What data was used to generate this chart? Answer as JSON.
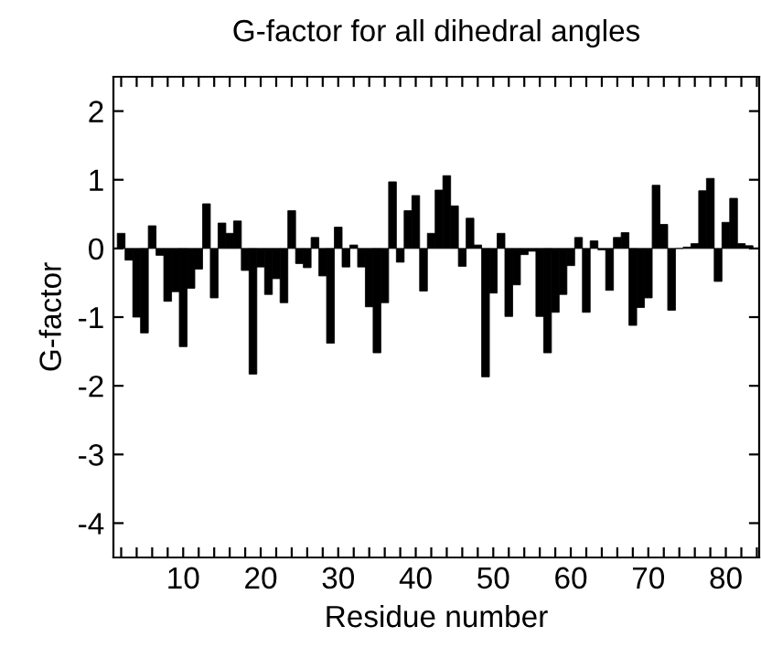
{
  "chart_data": {
    "type": "bar",
    "title": "G-factor for all dihedral angles",
    "xlabel": "Residue number",
    "ylabel": "G-factor",
    "x": [
      2,
      3,
      4,
      5,
      6,
      7,
      8,
      9,
      10,
      11,
      12,
      13,
      14,
      15,
      16,
      17,
      18,
      19,
      20,
      21,
      22,
      23,
      24,
      25,
      26,
      27,
      28,
      29,
      30,
      31,
      32,
      33,
      34,
      35,
      36,
      37,
      38,
      39,
      40,
      41,
      42,
      43,
      44,
      45,
      46,
      47,
      48,
      49,
      50,
      51,
      52,
      53,
      54,
      55,
      56,
      57,
      58,
      59,
      60,
      61,
      62,
      63,
      64,
      65,
      66,
      67,
      68,
      69,
      70,
      71,
      72,
      73,
      74,
      75,
      76,
      77,
      78,
      79,
      80,
      81,
      82,
      83
    ],
    "values": [
      0.22,
      -0.17,
      -1.0,
      -1.23,
      0.33,
      -0.1,
      -0.77,
      -0.63,
      -1.43,
      -0.58,
      -0.3,
      0.65,
      -0.72,
      0.37,
      0.22,
      0.4,
      -0.32,
      -1.83,
      -0.27,
      -0.67,
      -0.44,
      -0.79,
      0.55,
      -0.22,
      -0.28,
      0.16,
      -0.4,
      -1.38,
      0.31,
      -0.27,
      0.05,
      -0.27,
      -0.85,
      -1.52,
      -0.79,
      0.97,
      -0.2,
      0.55,
      0.77,
      -0.62,
      0.22,
      0.85,
      1.06,
      0.62,
      -0.26,
      0.44,
      0.05,
      -1.87,
      -0.65,
      0.22,
      -0.99,
      -0.53,
      -0.09,
      -0.04,
      -0.99,
      -1.52,
      -0.93,
      -0.67,
      -0.25,
      0.16,
      -0.93,
      0.11,
      -0.02,
      -0.61,
      0.16,
      0.23,
      -1.12,
      -0.86,
      -0.72,
      0.92,
      0.35,
      -0.9,
      0.0,
      0.02,
      0.07,
      0.84,
      1.02,
      -0.48,
      0.38,
      0.73,
      0.07,
      0.04
    ],
    "color": "#000000",
    "grid": false,
    "xlim": [
      1,
      84.3
    ],
    "ylim": [
      -4.5,
      2.5
    ],
    "xticks": [
      {
        "value": 2,
        "label": null
      },
      {
        "value": 4,
        "label": null
      },
      {
        "value": 6,
        "label": null
      },
      {
        "value": 8,
        "label": null
      },
      10,
      {
        "value": 12,
        "label": null
      },
      {
        "value": 14,
        "label": null
      },
      {
        "value": 16,
        "label": null
      },
      {
        "value": 18,
        "label": null
      },
      20,
      {
        "value": 22,
        "label": null
      },
      {
        "value": 24,
        "label": null
      },
      {
        "value": 26,
        "label": null
      },
      {
        "value": 28,
        "label": null
      },
      30,
      {
        "value": 32,
        "label": null
      },
      {
        "value": 34,
        "label": null
      },
      {
        "value": 36,
        "label": null
      },
      {
        "value": 38,
        "label": null
      },
      40,
      {
        "value": 42,
        "label": null
      },
      {
        "value": 44,
        "label": null
      },
      {
        "value": 46,
        "label": null
      },
      {
        "value": 48,
        "label": null
      },
      50,
      {
        "value": 52,
        "label": null
      },
      {
        "value": 54,
        "label": null
      },
      {
        "value": 56,
        "label": null
      },
      {
        "value": 58,
        "label": null
      },
      60,
      {
        "value": 62,
        "label": null
      },
      {
        "value": 64,
        "label": null
      },
      {
        "value": 66,
        "label": null
      },
      {
        "value": 68,
        "label": null
      },
      70,
      {
        "value": 72,
        "label": null
      },
      {
        "value": 74,
        "label": null
      },
      {
        "value": 76,
        "label": null
      },
      {
        "value": 78,
        "label": null
      },
      80,
      {
        "value": 82,
        "label": null
      },
      {
        "value": 84,
        "label": null
      }
    ],
    "yticks": [
      -4,
      -3,
      -2,
      -1,
      0,
      1,
      2
    ]
  }
}
